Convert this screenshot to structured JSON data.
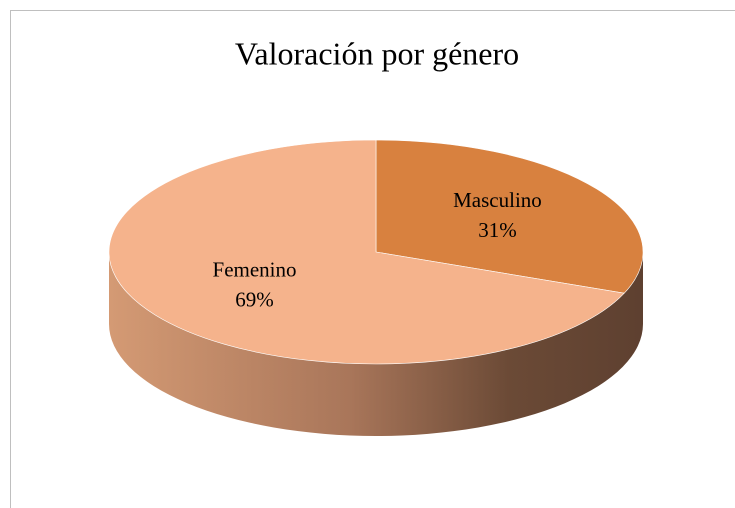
{
  "chart_data": {
    "type": "pie",
    "title": "Valoración por género",
    "categories": [
      "Masculino",
      "Femenino"
    ],
    "values": [
      31,
      69
    ],
    "value_labels": [
      "31%",
      "69%"
    ],
    "colors": [
      "#d8813f",
      "#f5b38c"
    ]
  }
}
